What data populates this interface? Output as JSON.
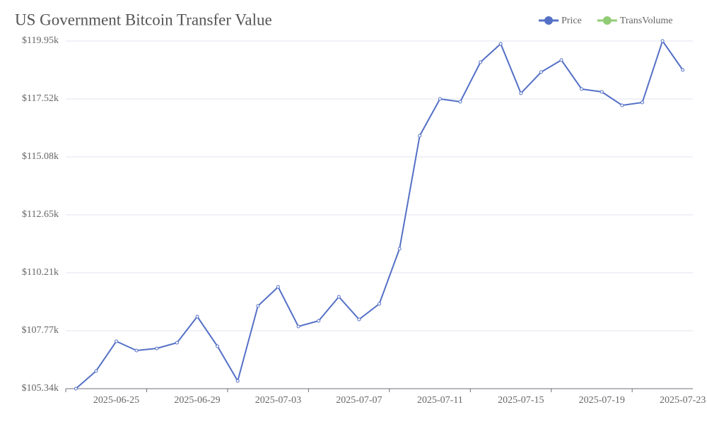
{
  "chart_data": {
    "type": "line",
    "title": "US Government Bitcoin Transfer Value",
    "categories": [
      null,
      null,
      "2025-06-25",
      null,
      null,
      null,
      "2025-06-29",
      null,
      null,
      null,
      "2025-07-03",
      null,
      null,
      null,
      "2025-07-07",
      null,
      null,
      null,
      "2025-07-11",
      null,
      null,
      null,
      "2025-07-15",
      null,
      null,
      null,
      "2025-07-19",
      null,
      null,
      null,
      "2025-07-23"
    ],
    "series": [
      {
        "name": "Price",
        "color": "#5470c6",
        "values": [
          105340,
          106082,
          107330,
          106944,
          107033,
          107270,
          108369,
          107122,
          105667,
          108814,
          109616,
          107953,
          108191,
          109200,
          108250,
          108903,
          111220,
          115971,
          117515,
          117396,
          119059,
          119831,
          117753,
          118644,
          119148,
          117931,
          117812,
          117248,
          117367,
          119950,
          118733
        ]
      },
      {
        "name": "TransVolume",
        "color": "#91cc75",
        "values": [
          null,
          null,
          null,
          null,
          null,
          null,
          null,
          null,
          null,
          null,
          null,
          null,
          null,
          null,
          null,
          null,
          null,
          null,
          null,
          null,
          null,
          null,
          null,
          null,
          null,
          null,
          null,
          null,
          null,
          null,
          null
        ]
      }
    ],
    "ylim": [
      105340,
      119950
    ],
    "yticks": [
      {
        "value": 105340,
        "label": "$105.34k"
      },
      {
        "value": 107775,
        "label": "$107.77k"
      },
      {
        "value": 110210,
        "label": "$110.21k"
      },
      {
        "value": 112645,
        "label": "$112.65k"
      },
      {
        "value": 115080,
        "label": "$115.08k"
      },
      {
        "value": 117515,
        "label": "$117.52k"
      },
      {
        "value": 119950,
        "label": "$119.95k"
      }
    ],
    "grid": true,
    "legend": "top-right"
  }
}
